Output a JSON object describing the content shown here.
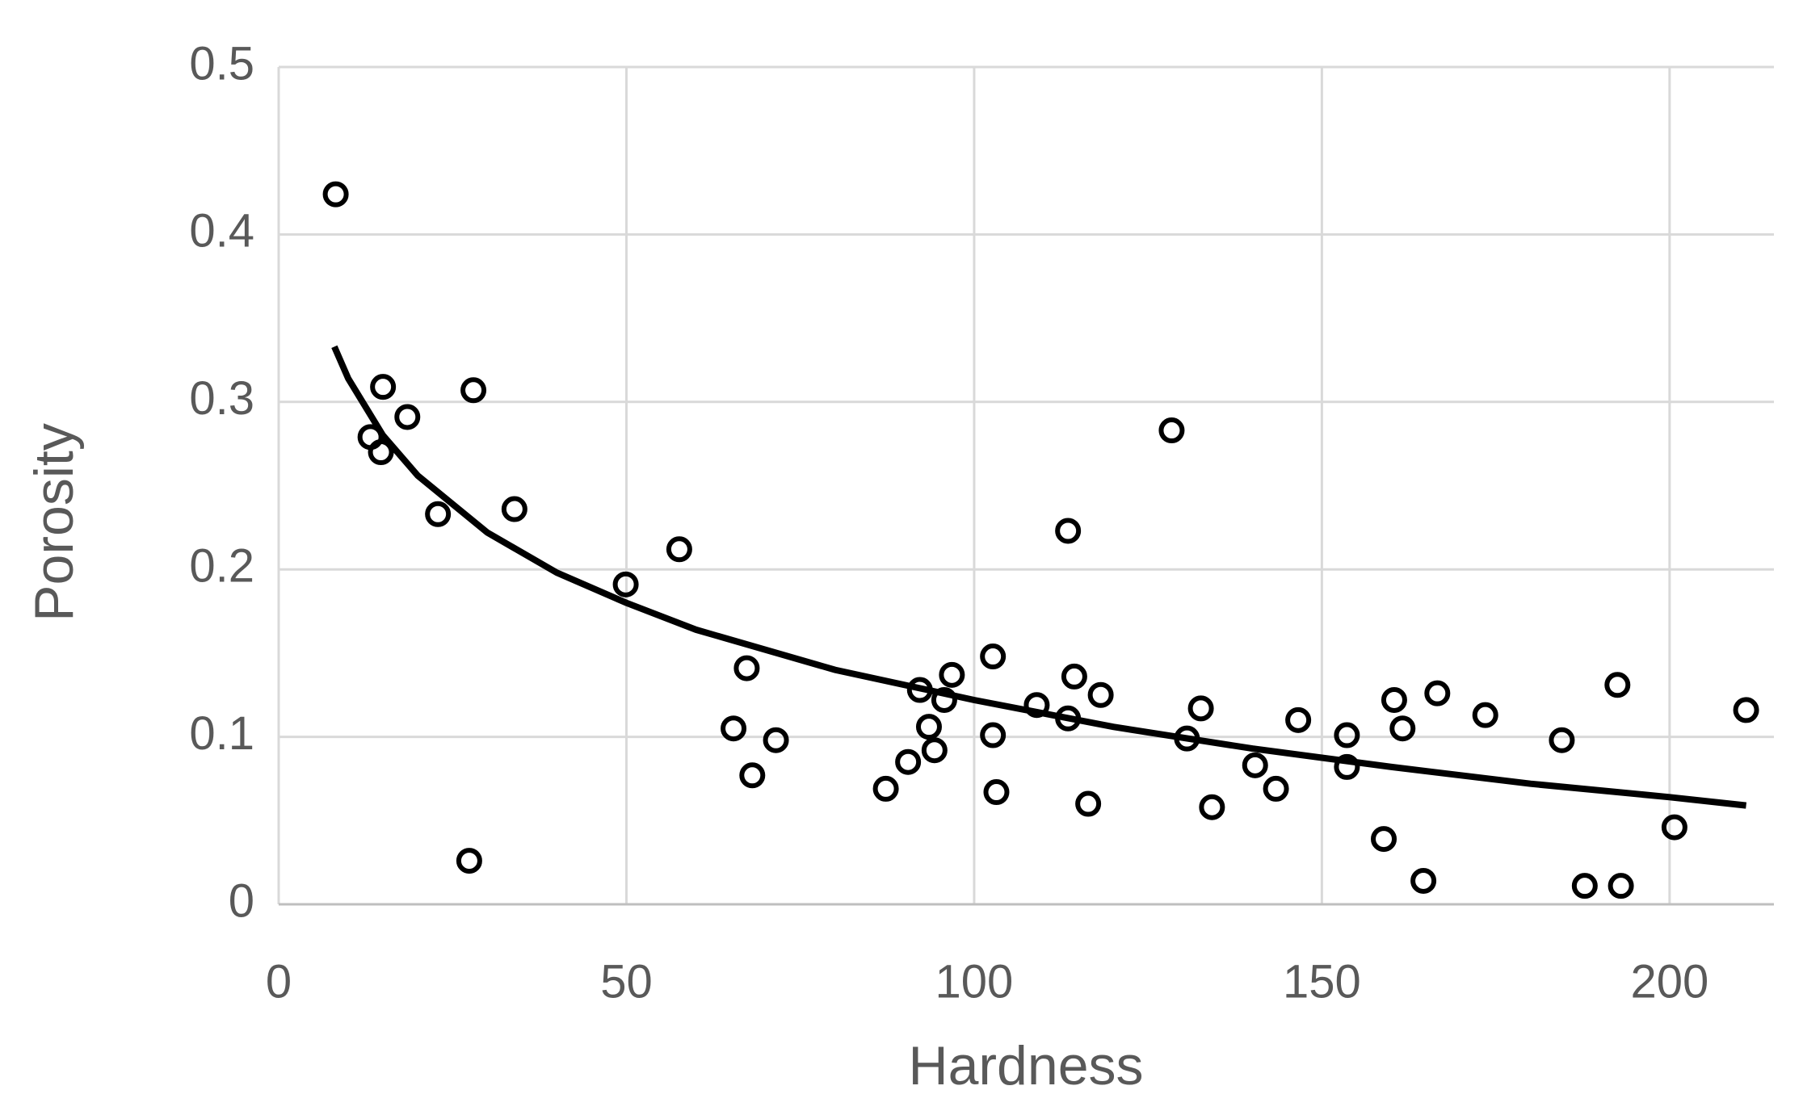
{
  "chart_data": {
    "type": "scatter",
    "x_label": "Hardness",
    "y_label": "Porosity",
    "xlim": [
      0,
      215
    ],
    "xticks": [
      0,
      50,
      100,
      150,
      200
    ],
    "ylim": [
      0,
      0.5
    ],
    "yticks": [
      {
        "value": 0,
        "label": "0"
      },
      0.1,
      0.2,
      0.3,
      0.4,
      0.5
    ],
    "grid": true,
    "series": [
      {
        "color": "#000000",
        "x": [
          8.2,
          15.0,
          13.2,
          14.7,
          18.5,
          28.0,
          22.9,
          33.9,
          27.4,
          49.9,
          57.6,
          67.3,
          65.4,
          71.5,
          68.1,
          87.3,
          90.5,
          92.2,
          93.5,
          94.3,
          95.7,
          96.8,
          102.7,
          102.7,
          103.2,
          109.0,
          113.5,
          113.5,
          114.4,
          118.2,
          116.4,
          128.4,
          130.6,
          132.6,
          134.2,
          140.4,
          143.4,
          146.6,
          153.6,
          153.6,
          158.9,
          160.4,
          161.6,
          164.6,
          166.6,
          173.5,
          184.5,
          187.8,
          192.5,
          193.0,
          200.7,
          211.0
        ],
        "values": [
          0.424,
          0.309,
          0.279,
          0.27,
          0.291,
          0.307,
          0.233,
          0.236,
          0.026,
          0.191,
          0.212,
          0.141,
          0.105,
          0.098,
          0.077,
          0.069,
          0.085,
          0.128,
          0.106,
          0.092,
          0.122,
          0.137,
          0.148,
          0.101,
          0.067,
          0.119,
          0.223,
          0.111,
          0.136,
          0.125,
          0.06,
          0.283,
          0.099,
          0.117,
          0.058,
          0.083,
          0.069,
          0.11,
          0.101,
          0.082,
          0.039,
          0.122,
          0.105,
          0.014,
          0.126,
          0.113,
          0.098,
          0.011,
          0.131,
          0.011,
          0.046,
          0.116
        ]
      }
    ],
    "trendline": {
      "color": "#000000",
      "x": [
        8,
        10,
        15,
        20,
        30,
        40,
        50,
        60,
        80,
        100,
        120,
        140,
        160,
        180,
        200,
        211
      ],
      "values": [
        0.333,
        0.314,
        0.28,
        0.256,
        0.222,
        0.198,
        0.18,
        0.164,
        0.14,
        0.122,
        0.106,
        0.093,
        0.082,
        0.072,
        0.064,
        0.059
      ]
    }
  }
}
